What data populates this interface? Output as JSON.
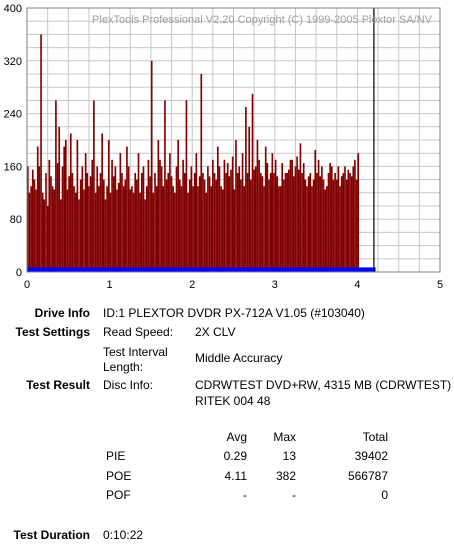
{
  "chart_data": {
    "type": "bar",
    "watermark": "PlexTools Professional V2.20 Copyright (C) 1999-2005 Plextor SA/NV",
    "x_ticks": [
      "0",
      "1",
      "2",
      "3",
      "4",
      "5"
    ],
    "y_ticks": [
      "0",
      "80",
      "160",
      "240",
      "320",
      "400"
    ],
    "xlim": [
      0,
      5
    ],
    "ylim": [
      0,
      400
    ],
    "grid": true,
    "end_position": 4.22,
    "series": [
      {
        "color": "#800000",
        "x_step": 0.02,
        "values": [
          160,
          120,
          130,
          155,
          140,
          125,
          190,
          160,
          360,
          120,
          110,
          150,
          100,
          170,
          145,
          130,
          125,
          260,
          165,
          220,
          110,
          160,
          190,
          200,
          125,
          145,
          210,
          150,
          130,
          120,
          200,
          110,
          140,
          160,
          125,
          180,
          150,
          130,
          145,
          170,
          260,
          120,
          160,
          130,
          150,
          210,
          140,
          110,
          130,
          200,
          120,
          170,
          145,
          160,
          125,
          135,
          180,
          150,
          130,
          140,
          190,
          160,
          125,
          130,
          120,
          150,
          140,
          180,
          120,
          150,
          160,
          110,
          130,
          170,
          145,
          320,
          120,
          150,
          130,
          200,
          170,
          160,
          130,
          260,
          140,
          150,
          180,
          145,
          130,
          120,
          160,
          200,
          140,
          130,
          170,
          150,
          260,
          120,
          140,
          160,
          130,
          150,
          180,
          130,
          145,
          300,
          150,
          140,
          120,
          160,
          145,
          130,
          170,
          150,
          140,
          190,
          160,
          130,
          125,
          170,
          150,
          165,
          145,
          155,
          175,
          125,
          200,
          150,
          160,
          140,
          180,
          130,
          250,
          150,
          220,
          140,
          270,
          155,
          160,
          200,
          170,
          150,
          145,
          130,
          190,
          165,
          140,
          150,
          180,
          150,
          170,
          145,
          130,
          130,
          165,
          140,
          150,
          150,
          155,
          170,
          170,
          145,
          160,
          175,
          155,
          195,
          150,
          165,
          140,
          130,
          145,
          150,
          130,
          140,
          185,
          150,
          170,
          145,
          160,
          140,
          125,
          130,
          150,
          165,
          160,
          140,
          150,
          140,
          160,
          130,
          145,
          150,
          160,
          140,
          155,
          150,
          145,
          160,
          170,
          140,
          180
        ]
      },
      {
        "color": "#0000ff",
        "x_step": 0.02,
        "constant": 7
      },
      {
        "color": "#000000",
        "spike_x": 4.2,
        "spike_value": 400
      }
    ]
  },
  "info": {
    "drive_info_label": "Drive Info",
    "drive_info_value": "ID:1 PLEXTOR DVDR PX-712A V1.05 (#103040)",
    "test_settings_label": "Test Settings",
    "read_speed_label": "Read Speed:",
    "read_speed_value": "2X CLV",
    "interval_label_1": "Test Interval",
    "interval_label_2": "Length:",
    "interval_value": "Middle Accuracy",
    "test_result_label": "Test Result",
    "disc_info_label": "Disc Info:",
    "disc_info_line1": "CDRWTEST DVD+RW, 4315 MB (CDRWTEST)",
    "disc_info_line2": "RITEK 004 48",
    "test_duration_label": "Test Duration",
    "test_duration_value": "0:10:22"
  },
  "results": {
    "headers": [
      "Avg",
      "Max",
      "Total"
    ],
    "rows": [
      {
        "name": "PIE",
        "avg": "0.29",
        "max": "13",
        "total": "39402"
      },
      {
        "name": "POE",
        "avg": "4.11",
        "max": "382",
        "total": "566787"
      },
      {
        "name": "POF",
        "avg": "-",
        "max": "-",
        "total": "0"
      }
    ]
  }
}
